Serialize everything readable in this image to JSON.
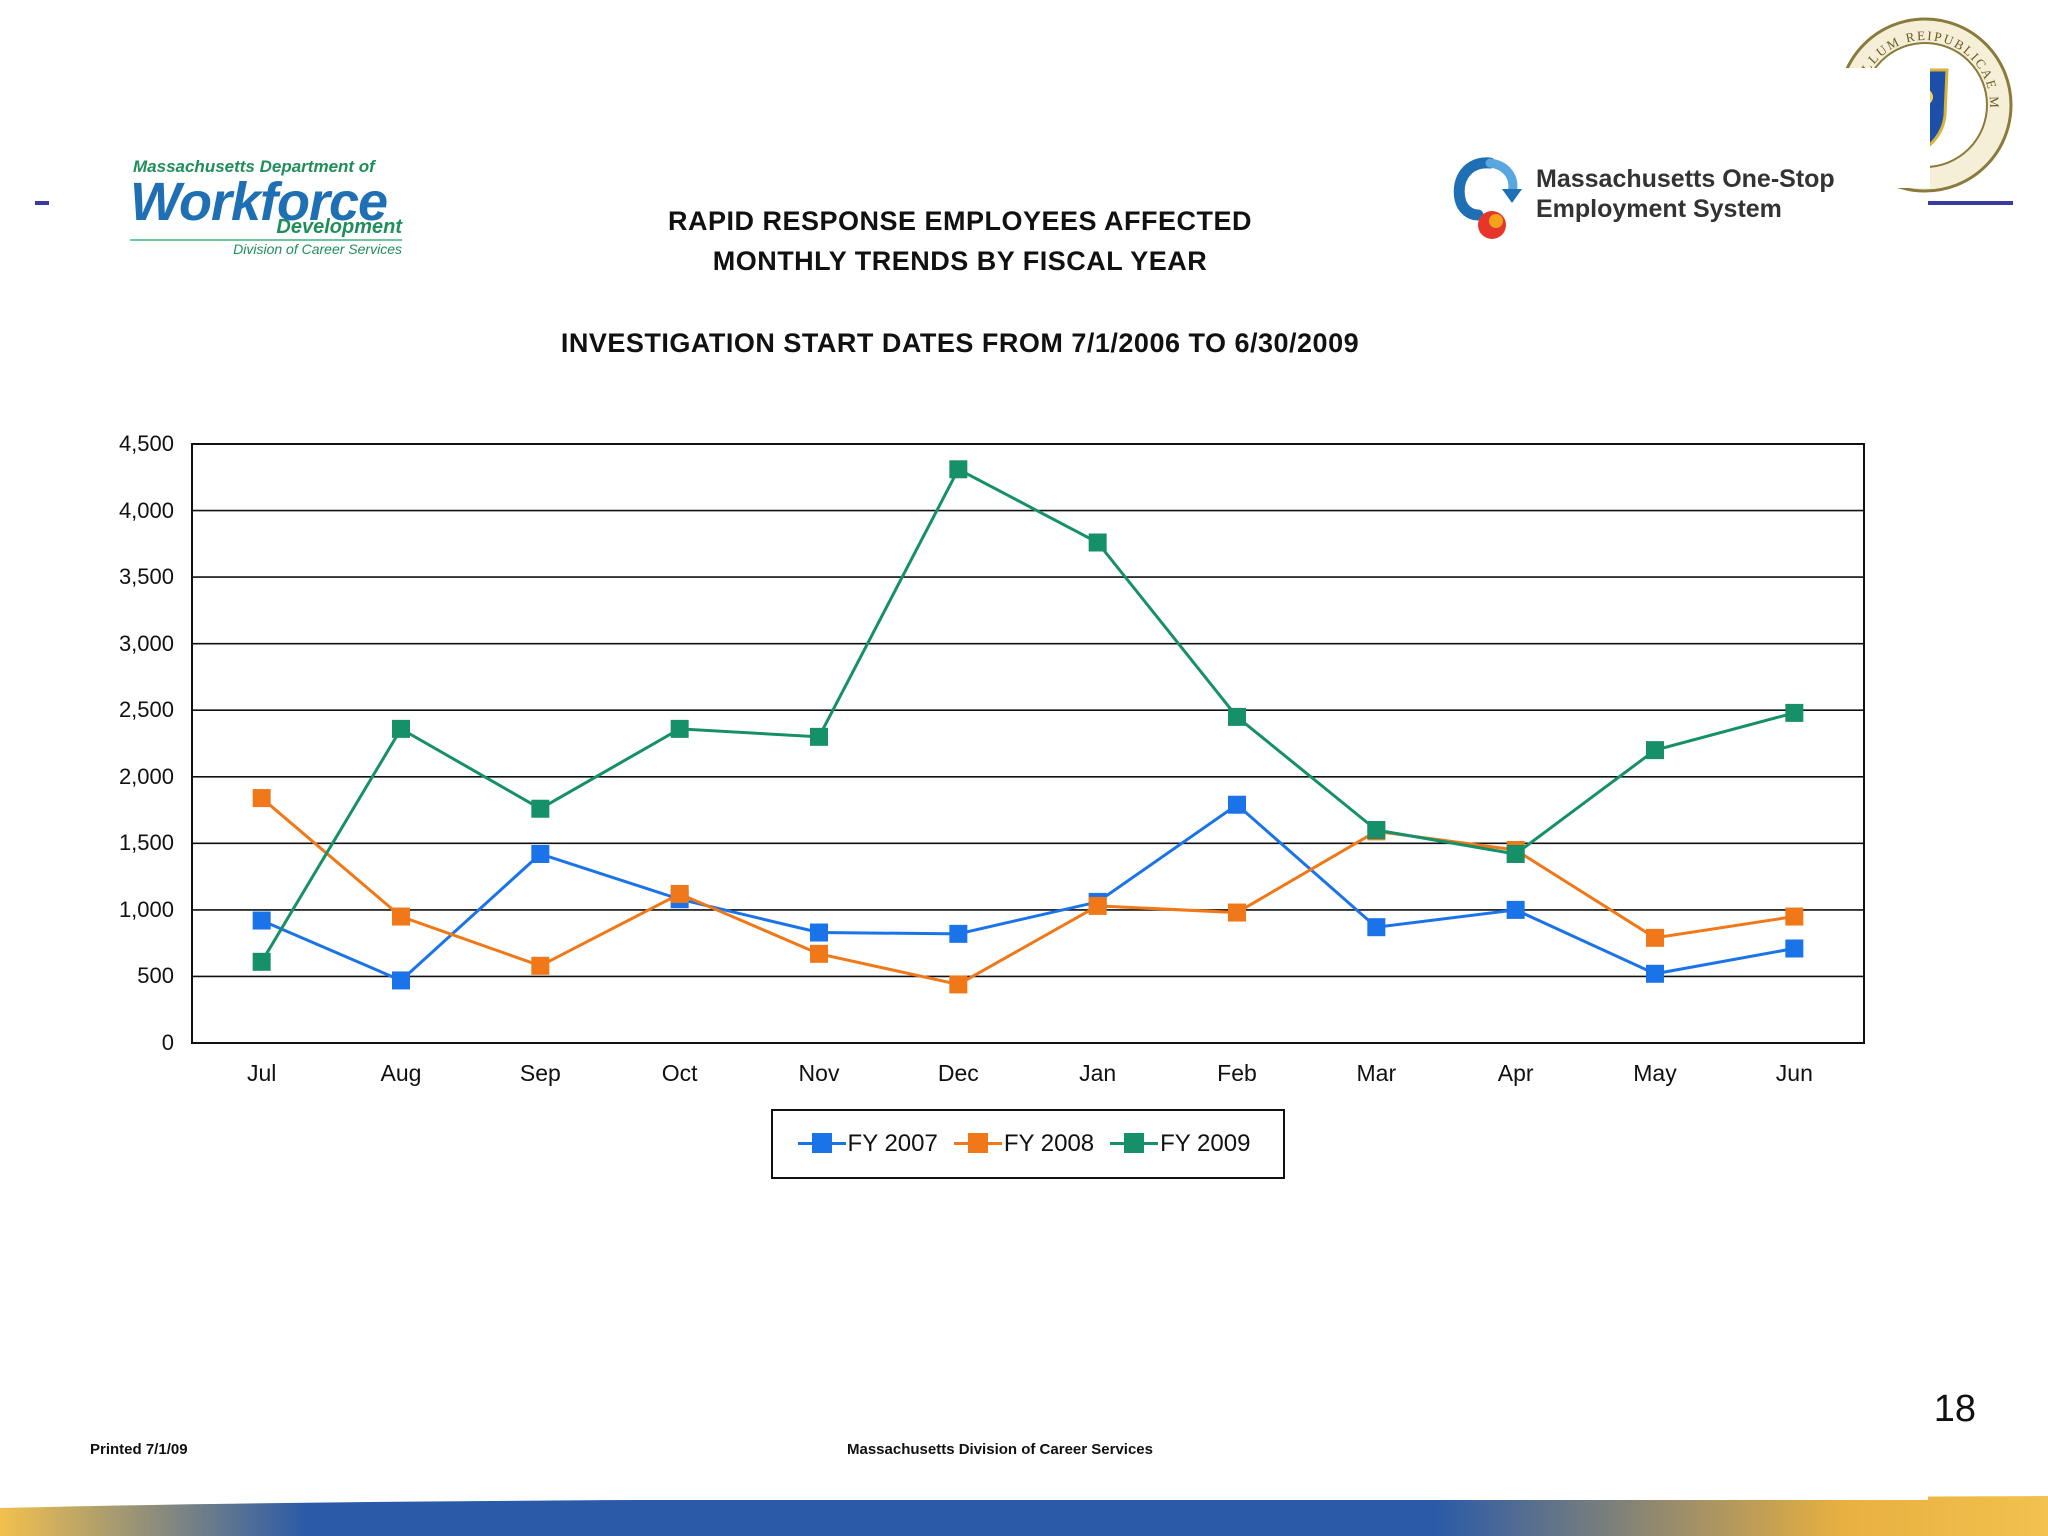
{
  "header": {
    "wfd_logo": {
      "line1": "Massachusetts Department of",
      "line2": "Workforce",
      "line3": "Development",
      "line4": "Division of Career Services"
    },
    "onestop_logo": {
      "line1": "Massachusetts One-Stop",
      "line2": "Employment System"
    },
    "seal_text": "SIGILLUM REIPUBLICAE MASSACHUSETTENSIS"
  },
  "chart_data": {
    "type": "line",
    "title_line1": "RAPID RESPONSE EMPLOYEES AFFECTED",
    "title_line2": "MONTHLY TRENDS BY FISCAL YEAR",
    "subtitle": "INVESTIGATION START DATES FROM 7/1/2006 TO 6/30/2009",
    "categories": [
      "Jul",
      "Aug",
      "Sep",
      "Oct",
      "Nov",
      "Dec",
      "Jan",
      "Feb",
      "Mar",
      "Apr",
      "May",
      "Jun"
    ],
    "yticks": [
      "0",
      "500",
      "1,000",
      "1,500",
      "2,000",
      "2,500",
      "3,000",
      "3,500",
      "4,000",
      "4,500"
    ],
    "ylim": [
      0,
      4500
    ],
    "grid": true,
    "legend_position": "bottom",
    "series": [
      {
        "name": "FY 2007",
        "color": "#1a73e8",
        "values": [
          920,
          470,
          1420,
          1080,
          830,
          820,
          1060,
          1790,
          870,
          1000,
          520,
          710
        ]
      },
      {
        "name": "FY 2008",
        "color": "#f07818",
        "values": [
          1840,
          950,
          580,
          1120,
          670,
          440,
          1030,
          980,
          1590,
          1450,
          790,
          950
        ]
      },
      {
        "name": "FY 2009",
        "color": "#169068",
        "values": [
          610,
          2360,
          1760,
          2360,
          2300,
          4310,
          3760,
          2450,
          1600,
          1420,
          2200,
          2480
        ]
      }
    ]
  },
  "footer": {
    "printed": "Printed 7/1/09",
    "center": "Massachusetts Division of Career Services",
    "page_number": "18"
  }
}
